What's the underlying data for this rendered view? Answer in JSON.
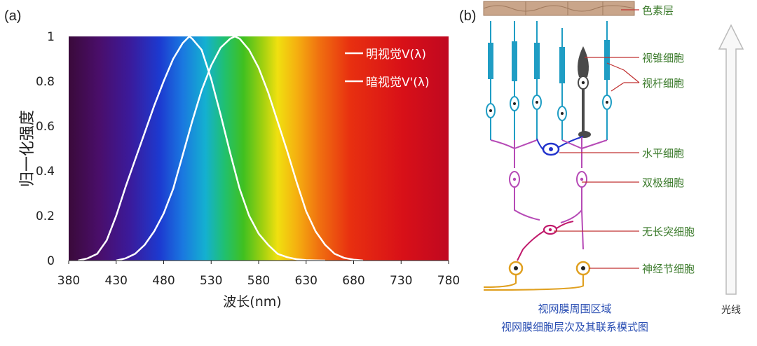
{
  "panel_a": {
    "label": "(a)",
    "chart_data": {
      "type": "line",
      "xlabel": "波长(nm)",
      "ylabel": "归一化强度",
      "xlim": [
        380,
        780
      ],
      "ylim": [
        0,
        1
      ],
      "x_ticks": [
        "380",
        "430",
        "480",
        "530",
        "580",
        "630",
        "680",
        "730",
        "780"
      ],
      "y_ticks": [
        "0",
        "0.2",
        "0.4",
        "0.6",
        "0.8",
        "1"
      ],
      "legend_position": "top-right",
      "background": "visible spectrum gradient",
      "series": [
        {
          "name": "暗视觉V'(λ)",
          "peak_nm": 507,
          "x": [
            390,
            400,
            410,
            420,
            430,
            440,
            450,
            460,
            470,
            480,
            490,
            500,
            507,
            510,
            520,
            530,
            540,
            550,
            560,
            570,
            580,
            590,
            600,
            610,
            620,
            630,
            640,
            650
          ],
          "y": [
            0.0,
            0.01,
            0.03,
            0.09,
            0.2,
            0.33,
            0.45,
            0.57,
            0.69,
            0.8,
            0.9,
            0.97,
            1.0,
            0.99,
            0.94,
            0.81,
            0.65,
            0.48,
            0.32,
            0.2,
            0.12,
            0.07,
            0.03,
            0.015,
            0.006,
            0.002,
            0.001,
            0.0
          ]
        },
        {
          "name": "明视觉V(λ)",
          "peak_nm": 555,
          "x": [
            430,
            440,
            450,
            460,
            470,
            480,
            490,
            500,
            510,
            520,
            530,
            540,
            550,
            555,
            560,
            570,
            580,
            590,
            600,
            610,
            620,
            630,
            640,
            650,
            660,
            670,
            680,
            690
          ],
          "y": [
            0.0,
            0.01,
            0.03,
            0.07,
            0.13,
            0.21,
            0.32,
            0.47,
            0.62,
            0.76,
            0.87,
            0.95,
            0.99,
            1.0,
            0.99,
            0.94,
            0.86,
            0.75,
            0.62,
            0.49,
            0.35,
            0.22,
            0.13,
            0.07,
            0.03,
            0.012,
            0.004,
            0.0
          ]
        }
      ],
      "colors": {
        "curve": "#ffffff",
        "axis": "#222222"
      }
    }
  },
  "panel_b": {
    "label": "(b)",
    "labels": {
      "pigment": "色素层",
      "cone": "视锥细胞",
      "rod": "视杆细胞",
      "horizontal": "水平细胞",
      "bipolar": "双极细胞",
      "amacrine": "无长突细胞",
      "ganglion": "神经节细胞",
      "light": "光线"
    },
    "caption": [
      "视网膜周围区域",
      "视网膜细胞层次及其联系模式图"
    ],
    "colors": {
      "label_text": "#3a7a2a",
      "caption_text": "#2b4fb3",
      "rod": "#1f9dc4",
      "cone": "#4a4a4a",
      "neuron": "#b64ab6",
      "horizontal_cell": "#2233cc",
      "amacrine_cell": "#c0186a",
      "ganglion_cell": "#e0a020",
      "leader_line": "#c03030",
      "pigment": "#c9a58a"
    }
  }
}
